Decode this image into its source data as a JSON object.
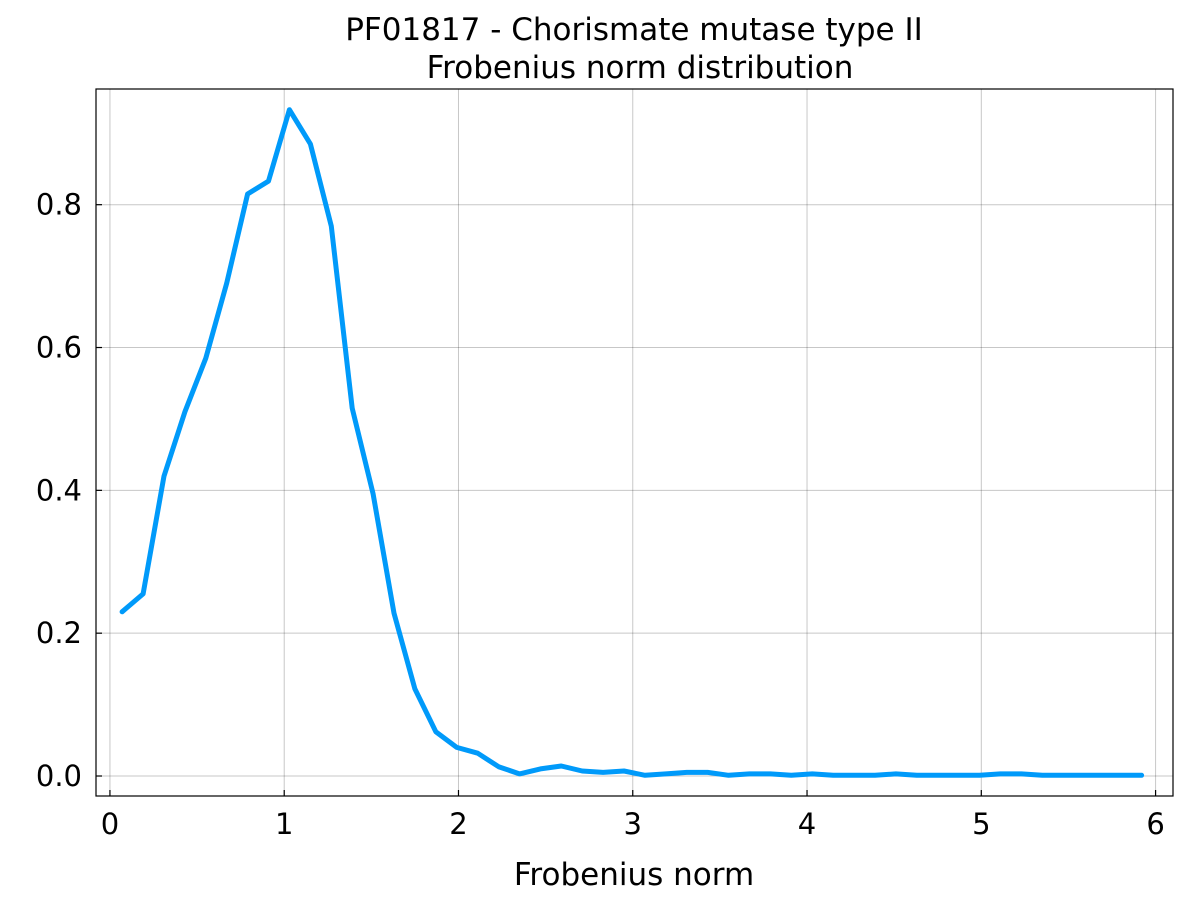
{
  "chart_data": {
    "type": "line",
    "title_line1": "PF01817 - Chorismate mutase type II",
    "title_line2": "Frobenius norm distribution",
    "xlabel": "Frobenius norm",
    "ylabel": "",
    "xlim": [
      -0.08,
      6.1
    ],
    "ylim": [
      -0.028,
      0.962
    ],
    "xticks": [
      0,
      1,
      2,
      3,
      4,
      5,
      6
    ],
    "xtick_labels": [
      "0",
      "1",
      "2",
      "3",
      "4",
      "5",
      "6"
    ],
    "yticks": [
      0.0,
      0.2,
      0.4,
      0.6,
      0.8
    ],
    "ytick_labels": [
      "0.0",
      "0.2",
      "0.4",
      "0.6",
      "0.8"
    ],
    "grid": true,
    "legend": "none",
    "series": [
      {
        "color": "#009AFA",
        "x": [
          0.07,
          0.19,
          0.31,
          0.43,
          0.55,
          0.67,
          0.79,
          0.91,
          1.03,
          1.15,
          1.27,
          1.39,
          1.51,
          1.63,
          1.75,
          1.87,
          1.99,
          2.11,
          2.23,
          2.35,
          2.47,
          2.59,
          2.71,
          2.83,
          2.95,
          3.07,
          3.19,
          3.31,
          3.43,
          3.55,
          3.67,
          3.79,
          3.91,
          4.03,
          4.15,
          4.27,
          4.39,
          4.51,
          4.63,
          4.75,
          4.87,
          4.99,
          5.11,
          5.23,
          5.35,
          5.47,
          5.59,
          5.71,
          5.83,
          5.92
        ],
        "y": [
          0.23,
          0.255,
          0.42,
          0.51,
          0.585,
          0.69,
          0.815,
          0.833,
          0.933,
          0.885,
          0.77,
          0.515,
          0.395,
          0.228,
          0.122,
          0.062,
          0.04,
          0.032,
          0.013,
          0.003,
          0.01,
          0.014,
          0.007,
          0.005,
          0.007,
          0.001,
          0.003,
          0.005,
          0.005,
          0.001,
          0.003,
          0.003,
          0.001,
          0.003,
          0.001,
          0.001,
          0.001,
          0.003,
          0.001,
          0.001,
          0.001,
          0.001,
          0.003,
          0.003,
          0.001,
          0.001,
          0.001,
          0.001,
          0.001,
          0.001
        ]
      }
    ]
  }
}
